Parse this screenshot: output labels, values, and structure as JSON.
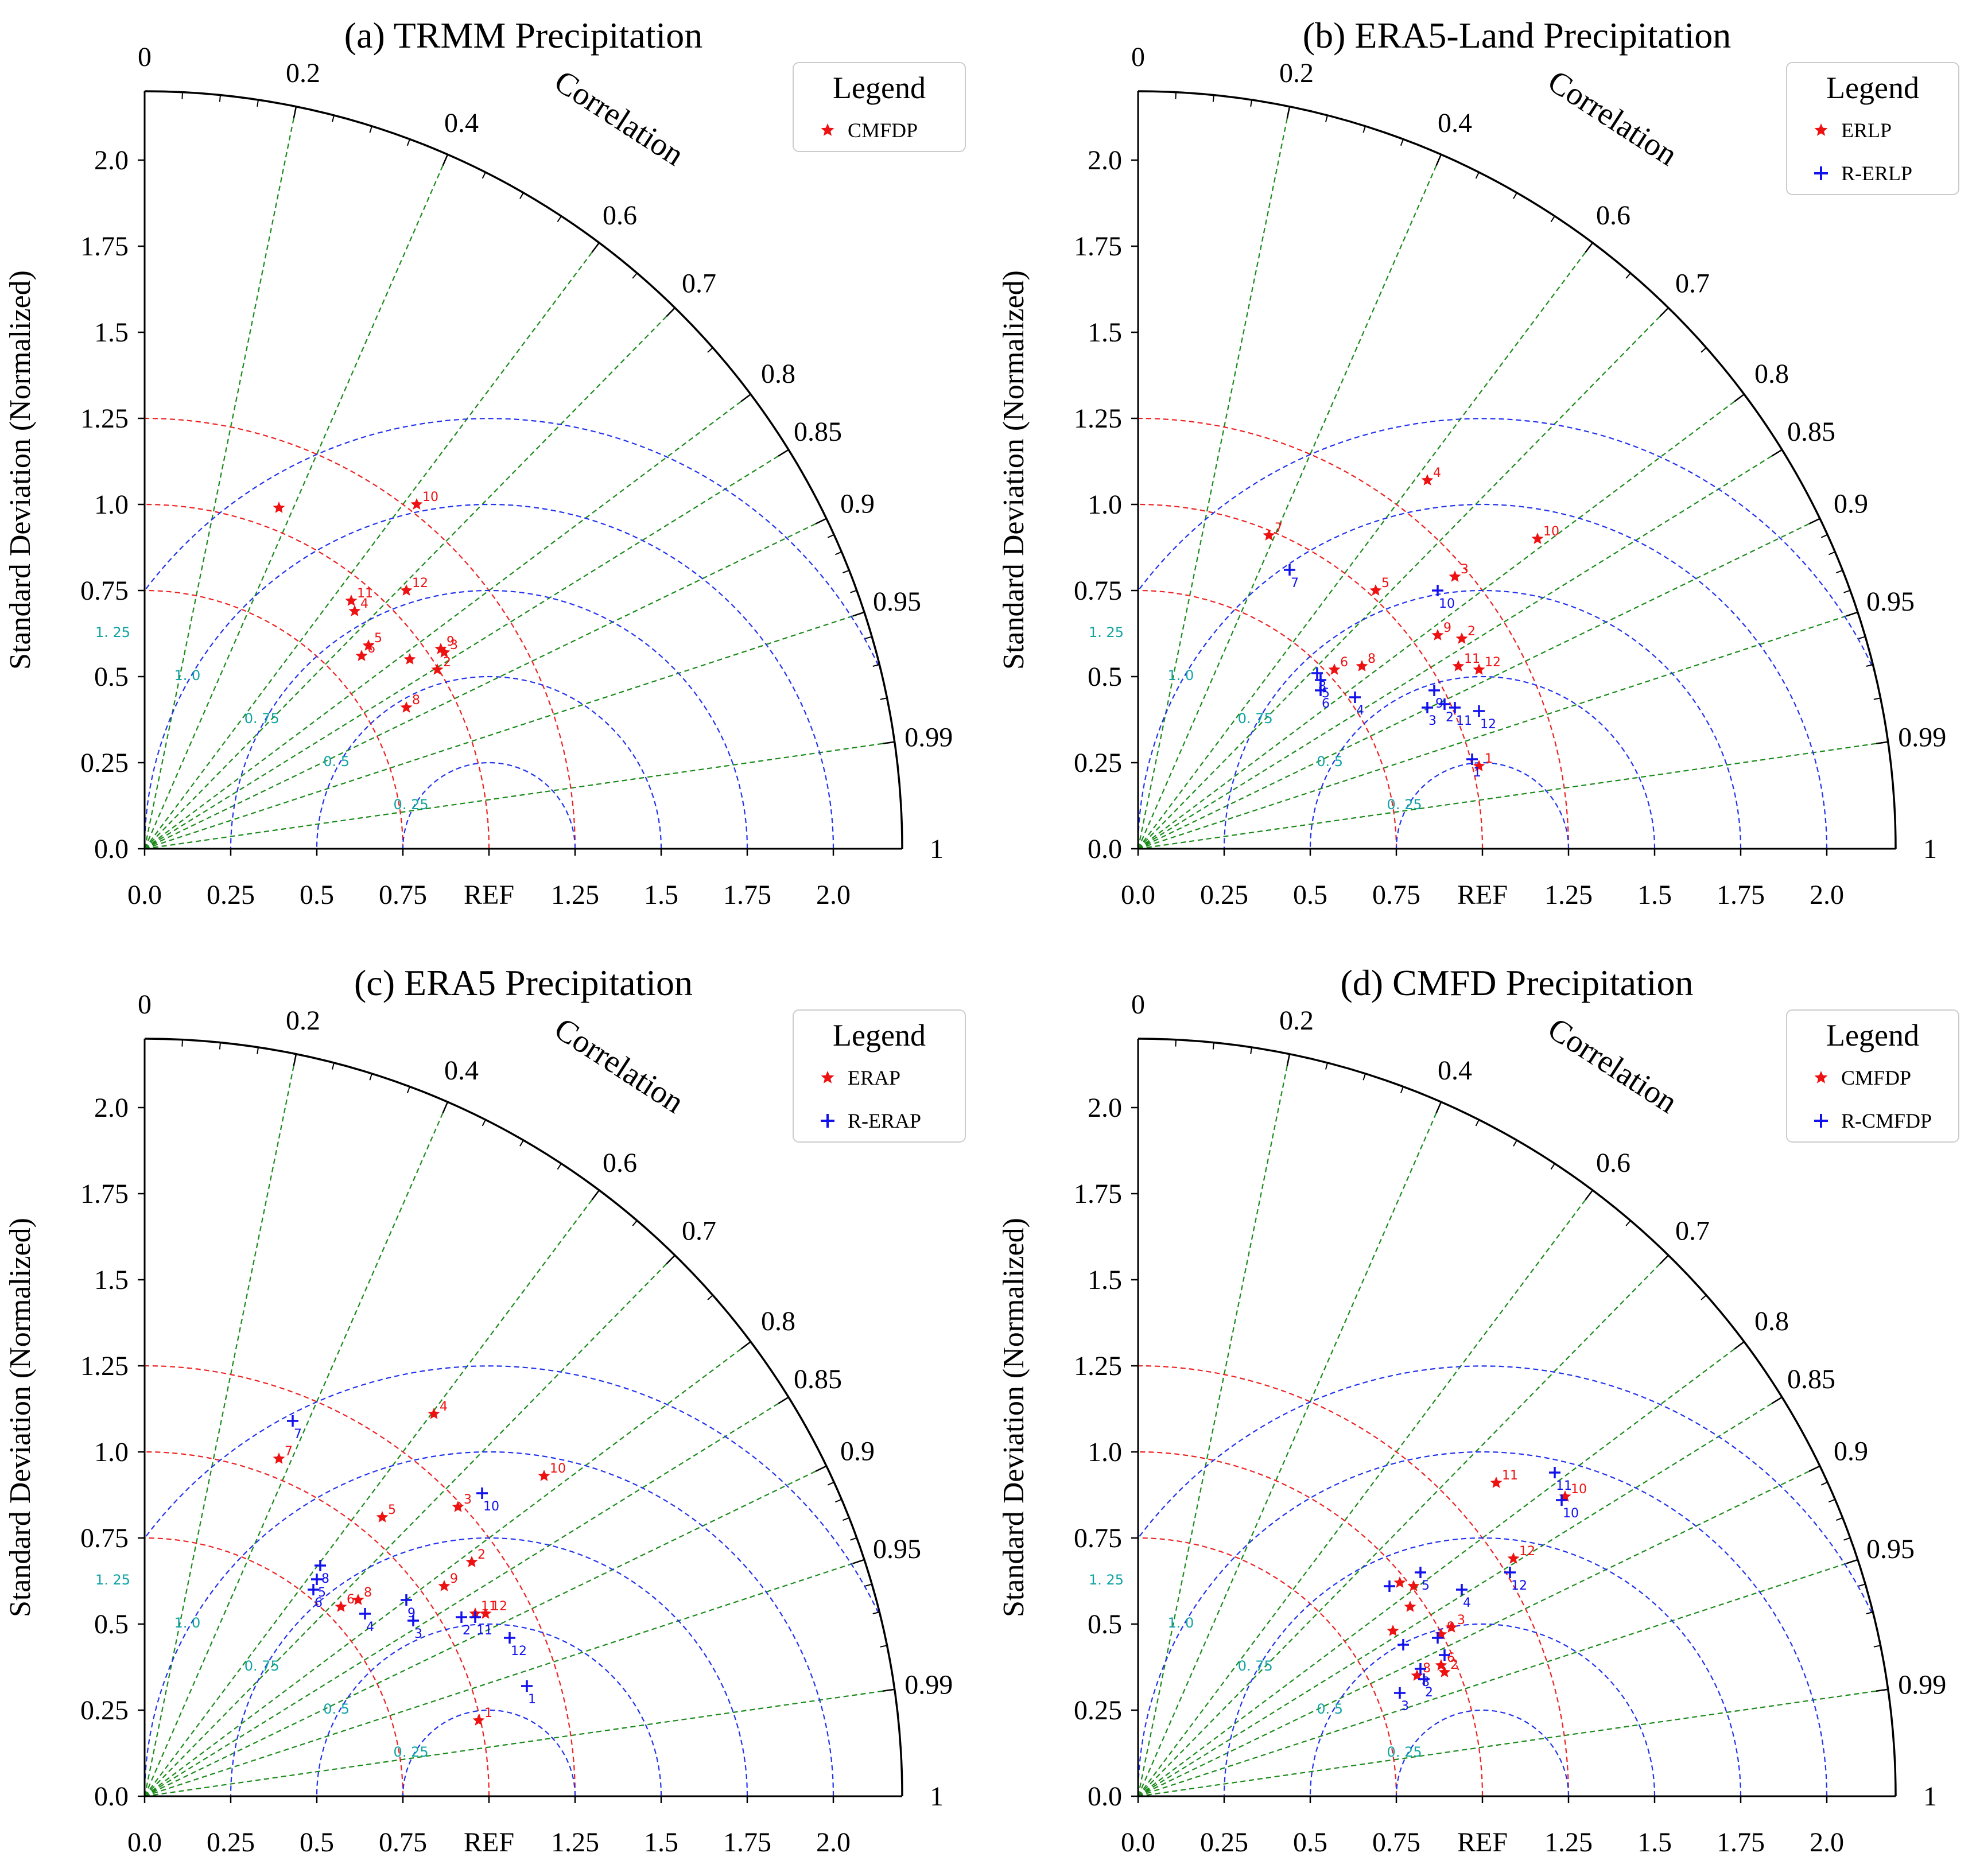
{
  "colors": {
    "axis": "#000000",
    "correlation_line": "#1a8a1a",
    "red_arc": "#ee2222",
    "blue_arc": "#2233ee",
    "arc_label": "#11a3a3",
    "series_red": "#ee1111",
    "series_blue": "#1111ee"
  },
  "common": {
    "ylabel": "Standard Deviation (Normalized)",
    "correlation_label": "Correlation",
    "legend_title": "Legend",
    "ref_label": "REF",
    "correlation_ticks": [
      {
        "r": 0,
        "label": "0"
      },
      {
        "r": 0.2,
        "label": "0.2"
      },
      {
        "r": 0.4,
        "label": "0.4"
      },
      {
        "r": 0.6,
        "label": "0.6"
      },
      {
        "r": 0.7,
        "label": "0.7"
      },
      {
        "r": 0.8,
        "label": "0.8"
      },
      {
        "r": 0.85,
        "label": "0.85"
      },
      {
        "r": 0.9,
        "label": "0.9"
      },
      {
        "r": 0.95,
        "label": "0.95"
      },
      {
        "r": 0.99,
        "label": "0.99"
      },
      {
        "r": 1,
        "label": "1"
      }
    ],
    "x_ticks": [
      {
        "v": 0,
        "label": "0.0"
      },
      {
        "v": 0.25,
        "label": "0.25"
      },
      {
        "v": 0.5,
        "label": "0.5"
      },
      {
        "v": 0.75,
        "label": "0.75"
      },
      {
        "v": 1.0,
        "label": "REF"
      },
      {
        "v": 1.25,
        "label": "1.25"
      },
      {
        "v": 1.5,
        "label": "1.5"
      },
      {
        "v": 1.75,
        "label": "1.75"
      },
      {
        "v": 2.0,
        "label": "2.0"
      }
    ],
    "y_ticks": [
      {
        "v": 0,
        "label": "0.0"
      },
      {
        "v": 0.25,
        "label": "0.25"
      },
      {
        "v": 0.5,
        "label": "0.5"
      },
      {
        "v": 0.75,
        "label": "0.75"
      },
      {
        "v": 1.0,
        "label": "1.0"
      },
      {
        "v": 1.25,
        "label": "1.25"
      },
      {
        "v": 1.5,
        "label": "1.5"
      },
      {
        "v": 1.75,
        "label": "1.75"
      },
      {
        "v": 2.0,
        "label": "2.0"
      }
    ],
    "red_arcs": [
      0.75,
      1.0,
      1.25
    ],
    "blue_arcs": [
      {
        "r": 0.25,
        "label": "0. 25"
      },
      {
        "r": 0.5,
        "label": "0. 5"
      },
      {
        "r": 0.75,
        "label": "0. 75"
      },
      {
        "r": 1.0,
        "label": "1. 0"
      },
      {
        "r": 1.25,
        "label": "1. 25"
      }
    ],
    "correlation_lines": [
      0.2,
      0.4,
      0.6,
      0.7,
      0.8,
      0.85,
      0.9,
      0.95,
      0.99
    ]
  },
  "chart_data": [
    {
      "type": "taylor",
      "title": "(a) TRMM Precipitation",
      "xlim": [
        0,
        2.2
      ],
      "ylabel": "Standard Deviation (Normalized)",
      "series": [
        {
          "name": "CMFDP",
          "marker": "star",
          "color": "#ee1111",
          "points": [
            {
              "label": "",
              "x": 0.39,
              "y": 0.99
            },
            {
              "label": "10",
              "x": 0.79,
              "y": 1.0
            },
            {
              "label": "11",
              "x": 0.6,
              "y": 0.72
            },
            {
              "label": "4",
              "x": 0.61,
              "y": 0.69
            },
            {
              "label": "12",
              "x": 0.76,
              "y": 0.75
            },
            {
              "label": "9",
              "x": 0.86,
              "y": 0.58
            },
            {
              "label": "3",
              "x": 0.87,
              "y": 0.57
            },
            {
              "label": "5",
              "x": 0.65,
              "y": 0.59
            },
            {
              "label": "6",
              "x": 0.63,
              "y": 0.56
            },
            {
              "label": "",
              "x": 0.77,
              "y": 0.55
            },
            {
              "label": "2",
              "x": 0.85,
              "y": 0.52
            },
            {
              "label": "8",
              "x": 0.76,
              "y": 0.41
            }
          ]
        }
      ]
    },
    {
      "type": "taylor",
      "title": "(b) ERA5-Land Precipitation",
      "xlim": [
        0,
        2.2
      ],
      "ylabel": "Standard Deviation (Normalized)",
      "series": [
        {
          "name": "ERLP",
          "marker": "star",
          "color": "#ee1111",
          "points": [
            {
              "label": "4",
              "x": 0.84,
              "y": 1.07
            },
            {
              "label": "7",
              "x": 0.38,
              "y": 0.91
            },
            {
              "label": "10",
              "x": 1.16,
              "y": 0.9
            },
            {
              "label": "3",
              "x": 0.92,
              "y": 0.79
            },
            {
              "label": "5",
              "x": 0.69,
              "y": 0.75
            },
            {
              "label": "9",
              "x": 0.87,
              "y": 0.62
            },
            {
              "label": "2",
              "x": 0.94,
              "y": 0.61
            },
            {
              "label": "6",
              "x": 0.57,
              "y": 0.52
            },
            {
              "label": "8",
              "x": 0.65,
              "y": 0.53
            },
            {
              "label": "11",
              "x": 0.93,
              "y": 0.53
            },
            {
              "label": "12",
              "x": 0.99,
              "y": 0.52
            },
            {
              "label": "1",
              "x": 0.99,
              "y": 0.24
            }
          ]
        },
        {
          "name": "R-ERLP",
          "marker": "plus",
          "color": "#1111ee",
          "points": [
            {
              "label": "7",
              "x": 0.44,
              "y": 0.81
            },
            {
              "label": "10",
              "x": 0.87,
              "y": 0.75
            },
            {
              "label": "8",
              "x": 0.52,
              "y": 0.51
            },
            {
              "label": "5",
              "x": 0.53,
              "y": 0.49
            },
            {
              "label": "6",
              "x": 0.53,
              "y": 0.46
            },
            {
              "label": "4",
              "x": 0.63,
              "y": 0.44
            },
            {
              "label": "9",
              "x": 0.86,
              "y": 0.46
            },
            {
              "label": "3",
              "x": 0.84,
              "y": 0.41
            },
            {
              "label": "2",
              "x": 0.89,
              "y": 0.42
            },
            {
              "label": "11",
              "x": 0.92,
              "y": 0.41
            },
            {
              "label": "12",
              "x": 0.99,
              "y": 0.4
            },
            {
              "label": "1",
              "x": 0.97,
              "y": 0.26
            }
          ]
        }
      ]
    },
    {
      "type": "taylor",
      "title": "(c) ERA5 Precipitation",
      "xlim": [
        0,
        2.2
      ],
      "ylabel": "Standard Deviation (Normalized)",
      "series": [
        {
          "name": "ERAP",
          "marker": "star",
          "color": "#ee1111",
          "points": [
            {
              "label": "4",
              "x": 0.84,
              "y": 1.11
            },
            {
              "label": "7",
              "x": 0.39,
              "y": 0.98
            },
            {
              "label": "10",
              "x": 1.16,
              "y": 0.93
            },
            {
              "label": "3",
              "x": 0.91,
              "y": 0.84
            },
            {
              "label": "5",
              "x": 0.69,
              "y": 0.81
            },
            {
              "label": "2",
              "x": 0.95,
              "y": 0.68
            },
            {
              "label": "9",
              "x": 0.87,
              "y": 0.61
            },
            {
              "label": "6",
              "x": 0.57,
              "y": 0.55
            },
            {
              "label": "8",
              "x": 0.62,
              "y": 0.57
            },
            {
              "label": "11",
              "x": 0.96,
              "y": 0.53
            },
            {
              "label": "12",
              "x": 0.99,
              "y": 0.53
            },
            {
              "label": "1",
              "x": 0.97,
              "y": 0.22
            }
          ]
        },
        {
          "name": "R-ERAP",
          "marker": "plus",
          "color": "#1111ee",
          "points": [
            {
              "label": "7",
              "x": 0.43,
              "y": 1.09
            },
            {
              "label": "10",
              "x": 0.98,
              "y": 0.88
            },
            {
              "label": "8",
              "x": 0.51,
              "y": 0.67
            },
            {
              "label": "5",
              "x": 0.5,
              "y": 0.63
            },
            {
              "label": "6",
              "x": 0.49,
              "y": 0.6
            },
            {
              "label": "4",
              "x": 0.64,
              "y": 0.53
            },
            {
              "label": "9",
              "x": 0.76,
              "y": 0.57
            },
            {
              "label": "3",
              "x": 0.78,
              "y": 0.51
            },
            {
              "label": "2",
              "x": 0.92,
              "y": 0.52
            },
            {
              "label": "11",
              "x": 0.96,
              "y": 0.52
            },
            {
              "label": "12",
              "x": 1.06,
              "y": 0.46
            },
            {
              "label": "1",
              "x": 1.11,
              "y": 0.32
            }
          ]
        }
      ]
    },
    {
      "type": "taylor",
      "title": "(d) CMFD Precipitation",
      "xlim": [
        0,
        2.2
      ],
      "ylabel": "Standard Deviation (Normalized)",
      "series": [
        {
          "name": "CMFDP",
          "marker": "star",
          "color": "#ee1111",
          "points": [
            {
              "label": "11",
              "x": 1.04,
              "y": 0.91
            },
            {
              "label": "10",
              "x": 1.24,
              "y": 0.87
            },
            {
              "label": "12",
              "x": 1.09,
              "y": 0.69
            },
            {
              "label": "",
              "x": 0.76,
              "y": 0.62
            },
            {
              "label": "",
              "x": 0.8,
              "y": 0.61
            },
            {
              "label": "",
              "x": 0.79,
              "y": 0.55
            },
            {
              "label": "",
              "x": 0.74,
              "y": 0.48
            },
            {
              "label": "9",
              "x": 0.88,
              "y": 0.47
            },
            {
              "label": "3",
              "x": 0.91,
              "y": 0.49
            },
            {
              "label": "6",
              "x": 0.88,
              "y": 0.38
            },
            {
              "label": "8",
              "x": 0.81,
              "y": 0.35
            },
            {
              "label": "2",
              "x": 0.89,
              "y": 0.36
            }
          ]
        },
        {
          "name": "R-CMFDP",
          "marker": "plus",
          "color": "#1111ee",
          "points": [
            {
              "label": "11",
              "x": 1.21,
              "y": 0.94
            },
            {
              "label": "10",
              "x": 1.23,
              "y": 0.86
            },
            {
              "label": "12",
              "x": 1.08,
              "y": 0.65
            },
            {
              "label": "5",
              "x": 0.82,
              "y": 0.65
            },
            {
              "label": "",
              "x": 0.73,
              "y": 0.61
            },
            {
              "label": "4",
              "x": 0.94,
              "y": 0.6
            },
            {
              "label": "",
              "x": 0.77,
              "y": 0.44
            },
            {
              "label": "",
              "x": 0.87,
              "y": 0.46
            },
            {
              "label": "",
              "x": 0.89,
              "y": 0.41
            },
            {
              "label": "2",
              "x": 0.83,
              "y": 0.34
            },
            {
              "label": "8",
              "x": 0.82,
              "y": 0.37
            },
            {
              "label": "3",
              "x": 0.76,
              "y": 0.3
            }
          ]
        }
      ]
    }
  ]
}
